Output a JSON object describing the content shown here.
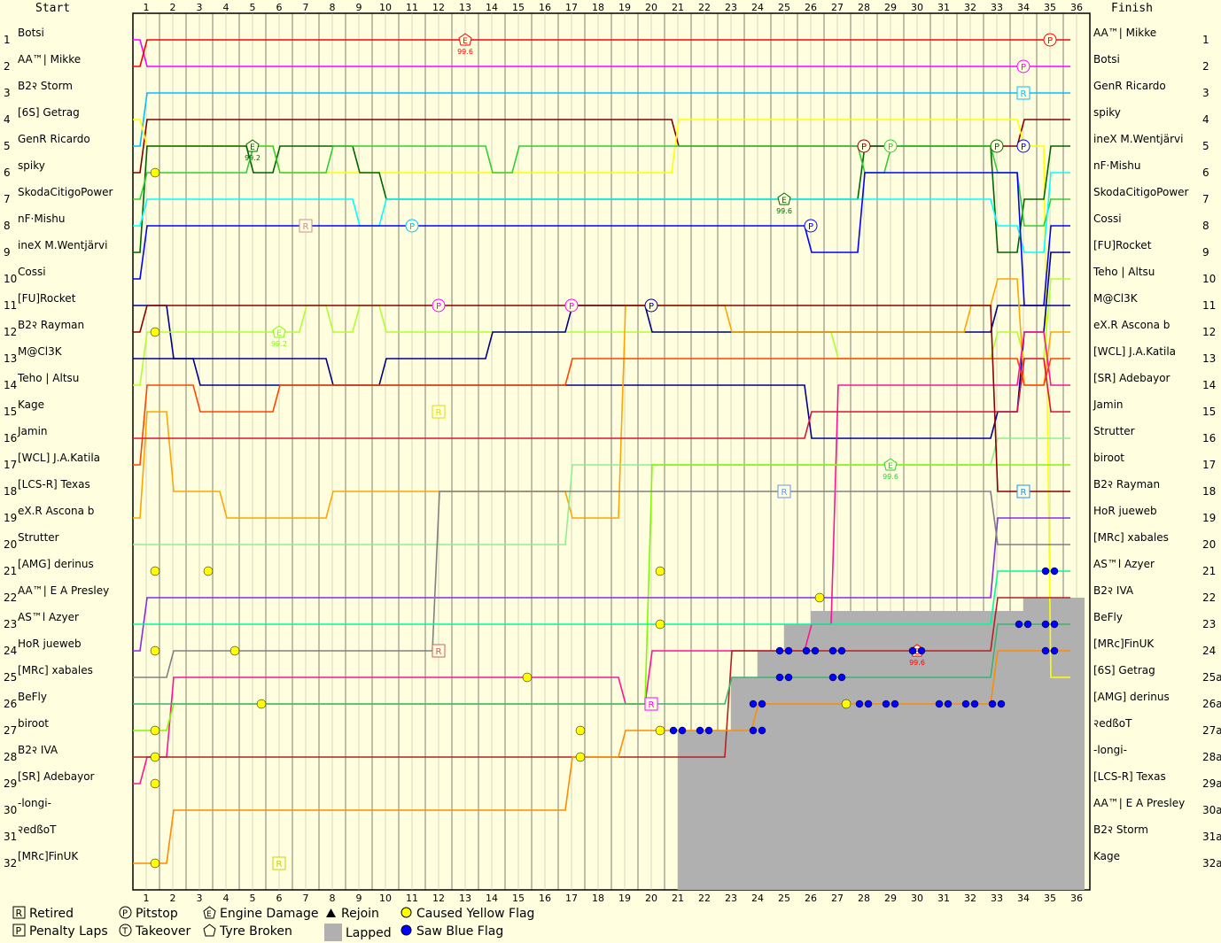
{
  "headers": {
    "start": "Start",
    "finish": "Finish"
  },
  "chart_data": {
    "type": "line",
    "title": "",
    "xlabel": "",
    "ylabel": "",
    "x_ticks": [
      1,
      2,
      3,
      4,
      5,
      6,
      7,
      8,
      9,
      10,
      11,
      12,
      13,
      14,
      15,
      16,
      17,
      18,
      19,
      20,
      21,
      22,
      23,
      24,
      25,
      26,
      27,
      28,
      29,
      30,
      31,
      32,
      33,
      34,
      35,
      36
    ],
    "xlim": [
      0,
      36
    ],
    "positions": [
      1,
      2,
      3,
      4,
      5,
      6,
      7,
      8,
      9,
      10,
      11,
      12,
      13,
      14,
      15,
      16,
      17,
      18,
      19,
      20,
      21,
      22,
      23,
      24,
      25,
      26,
      27,
      28,
      29,
      30,
      31,
      32
    ],
    "right_position_labels": [
      "1",
      "2",
      "3",
      "4",
      "5",
      "6",
      "7",
      "8",
      "9",
      "10",
      "11",
      "12",
      "13",
      "14",
      "15",
      "16",
      "17",
      "18",
      "19",
      "20",
      "21",
      "22",
      "23",
      "24",
      "25a",
      "26a",
      "27a",
      "28a",
      "29a",
      "30a",
      "31a",
      "32a"
    ],
    "start_order": [
      "Botsi",
      "AA™| Mikke",
      "B2२ Storm",
      "[6S] Getrag",
      "GenR Ricardo",
      "spiky",
      "SkodaCitigoPower",
      "nF·Mishu",
      "ineX M.Wentjärvi",
      "Cossi",
      "[FU]Rocket",
      "B2२ Rayman",
      "M@Cl3K",
      "Teho | Altsu",
      "Kage",
      "Jamin",
      "[WCL] J.A.Katila",
      "[LCS-R] Texas",
      "eX.R Ascona b",
      "Strutter",
      "[AMG] derinus",
      "AA™| E A Presley",
      "AS™l Azyer",
      "HoR jueweb",
      "[MRc] xabales",
      "BeFly",
      "biroot",
      "B2२ IVA",
      "[SR] Adebayor",
      "-longi-",
      "२edßoT",
      "[MRc]FinUK"
    ],
    "finish_order": [
      "AA™| Mikke",
      "Botsi",
      "GenR Ricardo",
      "spiky",
      "ineX M.Wentjärvi",
      "nF·Mishu",
      "SkodaCitigoPower",
      "Cossi",
      "[FU]Rocket",
      "Teho | Altsu",
      "M@Cl3K",
      "eX.R Ascona b",
      "[WCL] J.A.Katila",
      "[SR] Adebayor",
      "Jamin",
      "Strutter",
      "biroot",
      "B2२ Rayman",
      "HoR jueweb",
      "[MRc] xabales",
      "AS™l Azyer",
      "B2२ IVA",
      "BeFly",
      "[MRc]FinUK",
      "[6S] Getrag",
      "[AMG] derinus",
      "२edßoT",
      "-longi-",
      "[LCS-R] Texas",
      "AA™| E A Presley",
      "B2२ Storm",
      "Kage"
    ],
    "series": [
      {
        "name": "Botsi",
        "color": "#ff00ff",
        "positions": [
          1,
          2,
          2,
          2,
          2,
          2,
          2,
          2,
          2,
          2,
          2,
          2,
          2,
          2,
          2,
          2,
          2,
          2,
          2,
          2,
          2,
          2,
          2,
          2,
          2,
          2,
          2,
          2,
          2,
          2,
          2,
          2,
          2,
          2,
          2,
          2
        ]
      },
      {
        "name": "AA™| Mikke",
        "color": "#ff0000",
        "positions": [
          2,
          1,
          1,
          1,
          1,
          1,
          1,
          1,
          1,
          1,
          1,
          1,
          1,
          1,
          1,
          1,
          1,
          1,
          1,
          1,
          1,
          1,
          1,
          1,
          1,
          1,
          1,
          1,
          1,
          1,
          1,
          1,
          1,
          1,
          1,
          1
        ]
      },
      {
        "name": "GenR Ricardo",
        "color": "#00bfff",
        "positions": [
          5,
          3,
          3,
          3,
          3,
          3,
          3,
          3,
          3,
          3,
          3,
          3,
          3,
          3,
          3,
          3,
          3,
          3,
          3,
          3,
          3,
          3,
          3,
          3,
          3,
          3,
          3,
          3,
          3,
          3,
          3,
          3,
          3,
          3,
          3,
          3
        ]
      },
      {
        "name": "spiky",
        "color": "#800000",
        "positions": [
          6,
          4,
          4,
          4,
          4,
          4,
          4,
          4,
          4,
          4,
          4,
          4,
          4,
          4,
          4,
          4,
          4,
          4,
          4,
          4,
          4,
          5,
          5,
          5,
          5,
          5,
          5,
          5,
          5,
          5,
          5,
          5,
          5,
          5,
          4,
          4
        ]
      },
      {
        "name": "[6S] Getrag",
        "color": "#ffff00",
        "positions": [
          4,
          5,
          5,
          5,
          5,
          5,
          6,
          6,
          6,
          6,
          6,
          6,
          6,
          6,
          6,
          6,
          6,
          6,
          6,
          6,
          6,
          4,
          4,
          4,
          4,
          4,
          4,
          4,
          4,
          4,
          4,
          4,
          4,
          4,
          5,
          25
        ]
      },
      {
        "name": "ineX M.Wentjärvi",
        "color": "#006400",
        "positions": [
          9,
          5,
          5,
          5,
          5,
          6,
          5,
          5,
          5,
          6,
          7,
          7,
          7,
          7,
          7,
          7,
          7,
          7,
          7,
          7,
          7,
          7,
          7,
          7,
          7,
          7,
          7,
          7,
          5,
          5,
          5,
          5,
          5,
          9,
          7,
          5
        ]
      },
      {
        "name": "SkodaCitigoPower",
        "color": "#32cd32",
        "positions": [
          7,
          6,
          6,
          6,
          6,
          5,
          6,
          6,
          5,
          5,
          5,
          5,
          5,
          5,
          6,
          5,
          5,
          5,
          5,
          5,
          5,
          5,
          5,
          5,
          5,
          5,
          5,
          5,
          6,
          5,
          5,
          5,
          5,
          6,
          8,
          7
        ]
      },
      {
        "name": "nF·Mishu",
        "color": "#00ffff",
        "positions": [
          8,
          7,
          7,
          7,
          7,
          7,
          7,
          7,
          7,
          8,
          7,
          7,
          7,
          7,
          7,
          7,
          7,
          7,
          7,
          7,
          7,
          7,
          7,
          7,
          7,
          7,
          7,
          7,
          7,
          7,
          7,
          7,
          7,
          8,
          9,
          6
        ]
      },
      {
        "name": "Cossi",
        "color": "#0000ff",
        "positions": [
          10,
          8,
          8,
          8,
          8,
          8,
          8,
          8,
          8,
          8,
          8,
          8,
          8,
          8,
          8,
          8,
          8,
          8,
          8,
          8,
          8,
          8,
          8,
          8,
          8,
          8,
          9,
          9,
          6,
          6,
          6,
          6,
          6,
          6,
          11,
          8
        ]
      },
      {
        "name": "[FU]Rocket",
        "color": "#00008b",
        "positions": [
          11,
          11,
          13,
          14,
          14,
          14,
          14,
          14,
          14,
          14,
          14,
          14,
          14,
          14,
          14,
          14,
          14,
          14,
          14,
          14,
          14,
          14,
          14,
          14,
          14,
          14,
          16,
          16,
          16,
          16,
          16,
          16,
          16,
          15,
          12,
          9
        ]
      },
      {
        "name": "Teho | Altsu",
        "color": "#adff2f",
        "positions": [
          14,
          12,
          12,
          12,
          12,
          12,
          12,
          11,
          12,
          11,
          12,
          12,
          12,
          12,
          12,
          12,
          12,
          12,
          12,
          12,
          12,
          12,
          12,
          12,
          12,
          12,
          12,
          13,
          13,
          13,
          13,
          13,
          13,
          12,
          13,
          10
        ]
      },
      {
        "name": "M@Cl3K",
        "color": "#000080",
        "positions": [
          13,
          13,
          13,
          13,
          13,
          13,
          13,
          13,
          14,
          14,
          13,
          13,
          13,
          13,
          12,
          12,
          12,
          11,
          11,
          11,
          12,
          12,
          12,
          12,
          12,
          12,
          12,
          12,
          12,
          12,
          12,
          12,
          12,
          11,
          11,
          11
        ]
      },
      {
        "name": "eX.R Ascona b",
        "color": "#ffa500",
        "positions": [
          19,
          15,
          18,
          18,
          19,
          19,
          19,
          19,
          18,
          18,
          18,
          18,
          18,
          18,
          18,
          18,
          18,
          19,
          19,
          11,
          11,
          11,
          11,
          12,
          12,
          12,
          12,
          12,
          12,
          12,
          12,
          12,
          11,
          10,
          14,
          12
        ]
      },
      {
        "name": "[WCL] J.A.Katila",
        "color": "#ff4500",
        "positions": [
          17,
          14,
          14,
          15,
          15,
          15,
          14,
          14,
          14,
          14,
          14,
          14,
          14,
          14,
          14,
          14,
          14,
          13,
          13,
          13,
          13,
          13,
          13,
          13,
          13,
          13,
          13,
          13,
          13,
          13,
          13,
          13,
          13,
          13,
          14,
          13
        ]
      },
      {
        "name": "[SR] Adebayor",
        "color": "#ff1493",
        "positions": [
          29,
          28,
          25,
          25,
          25,
          25,
          25,
          25,
          25,
          25,
          25,
          25,
          25,
          25,
          25,
          25,
          25,
          25,
          25,
          26,
          24,
          24,
          24,
          24,
          24,
          24,
          23,
          14,
          14,
          14,
          14,
          14,
          14,
          14,
          12,
          14
        ]
      },
      {
        "name": "Jamin",
        "color": "#dc143c",
        "positions": [
          16,
          16,
          16,
          16,
          16,
          16,
          16,
          16,
          16,
          16,
          16,
          16,
          16,
          16,
          16,
          16,
          16,
          16,
          16,
          16,
          16,
          16,
          16,
          16,
          16,
          16,
          15,
          15,
          15,
          15,
          15,
          15,
          15,
          15,
          13,
          15
        ]
      },
      {
        "name": "Strutter",
        "color": "#90ee90",
        "positions": [
          20,
          20,
          20,
          20,
          20,
          20,
          20,
          20,
          20,
          20,
          20,
          20,
          20,
          20,
          20,
          20,
          20,
          17,
          17,
          17,
          17,
          17,
          17,
          17,
          17,
          17,
          17,
          17,
          17,
          17,
          17,
          17,
          17,
          16,
          16,
          16
        ]
      },
      {
        "name": "biroot",
        "color": "#7cfc00",
        "positions": [
          27,
          27,
          26,
          26,
          26,
          26,
          26,
          26,
          26,
          26,
          26,
          26,
          26,
          26,
          26,
          26,
          26,
          26,
          26,
          26,
          17,
          17,
          17,
          17,
          17,
          17,
          17,
          17,
          17,
          17,
          17,
          17,
          17,
          17,
          17,
          17
        ]
      },
      {
        "name": "B2२ Rayman",
        "color": "#8b0000",
        "positions": [
          12,
          11,
          11,
          11,
          11,
          11,
          11,
          11,
          11,
          11,
          11,
          11,
          11,
          11,
          11,
          11,
          11,
          11,
          11,
          11,
          11,
          11,
          11,
          11,
          11,
          11,
          11,
          11,
          11,
          11,
          11,
          11,
          11,
          18,
          18,
          18
        ]
      },
      {
        "name": "HoR jueweb",
        "color": "#8a2be2",
        "positions": [
          24,
          22,
          22,
          22,
          22,
          22,
          22,
          22,
          22,
          22,
          22,
          22,
          22,
          22,
          22,
          22,
          22,
          22,
          22,
          22,
          22,
          22,
          22,
          22,
          22,
          22,
          22,
          22,
          22,
          22,
          22,
          22,
          22,
          19,
          19,
          19
        ]
      },
      {
        "name": "[MRc] xabales",
        "color": "#808080",
        "positions": [
          25,
          25,
          24,
          24,
          24,
          24,
          24,
          24,
          24,
          24,
          24,
          24,
          18,
          18,
          18,
          18,
          18,
          18,
          18,
          18,
          18,
          18,
          18,
          18,
          18,
          18,
          18,
          18,
          18,
          18,
          18,
          18,
          18,
          20,
          20,
          20
        ]
      },
      {
        "name": "AS™l Azyer",
        "color": "#00fa9a",
        "positions": [
          23,
          23,
          23,
          23,
          23,
          23,
          23,
          23,
          23,
          23,
          23,
          23,
          23,
          23,
          23,
          23,
          23,
          23,
          23,
          23,
          23,
          23,
          23,
          23,
          23,
          23,
          23,
          23,
          23,
          23,
          23,
          23,
          23,
          21,
          21,
          21
        ]
      },
      {
        "name": "B2२ IVA",
        "color": "#b22222",
        "positions": [
          28,
          28,
          28,
          28,
          28,
          28,
          28,
          28,
          28,
          28,
          28,
          28,
          28,
          28,
          28,
          28,
          28,
          28,
          28,
          28,
          28,
          28,
          28,
          24,
          24,
          24,
          24,
          24,
          24,
          24,
          24,
          24,
          24,
          22,
          22,
          22
        ]
      },
      {
        "name": "BeFly",
        "color": "#3cb371",
        "positions": [
          26,
          26,
          26,
          26,
          26,
          26,
          26,
          26,
          26,
          26,
          26,
          26,
          26,
          26,
          26,
          26,
          26,
          26,
          26,
          26,
          26,
          26,
          26,
          25,
          25,
          25,
          25,
          25,
          25,
          25,
          25,
          25,
          25,
          23,
          23,
          23
        ]
      },
      {
        "name": "[MRc]FinUK",
        "color": "#ff8c00",
        "positions": [
          32,
          32,
          30,
          30,
          30,
          30,
          30,
          30,
          30,
          30,
          30,
          30,
          30,
          30,
          30,
          30,
          30,
          28,
          28,
          27,
          27,
          27,
          27,
          27,
          26,
          26,
          26,
          26,
          26,
          26,
          26,
          26,
          26,
          24,
          24,
          24
        ]
      }
    ],
    "grid": true,
    "legend": "bottom-left"
  },
  "markers": {
    "pit_label": "P",
    "retired_label": "R",
    "engine_label": "E",
    "engine_pcts": [
      "99.6",
      "99.2",
      "99.6",
      "99.2",
      "99.6",
      "99.6"
    ]
  },
  "legend": {
    "retired": "Retired",
    "penalty": "Penalty Laps",
    "pitstop": "Pitstop",
    "takeover": "Takeover",
    "engine": "Engine Damage",
    "tyre": "Tyre Broken",
    "rejoin": "Rejoin",
    "lapped": "Lapped",
    "yellow": "Caused Yellow Flag",
    "blue": "Saw Blue Flag"
  },
  "colors": {
    "background": "#ffffe0",
    "lapped": "#b0b0b0",
    "yellow_flag": "#ffff00",
    "blue_flag": "#0000ff"
  }
}
